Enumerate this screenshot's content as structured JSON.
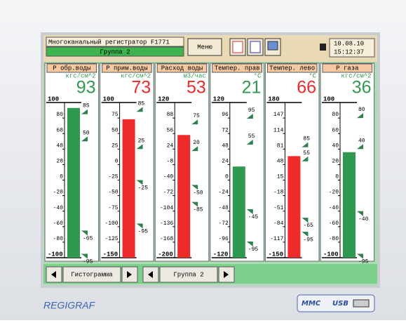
{
  "header": {
    "title": "Многоканальный регистратор F1771",
    "group": "Группа 2",
    "menu": "Меню",
    "date": "10.08.10",
    "time": "15:12:37"
  },
  "channels": [
    {
      "name": "Р обр.воды",
      "unit": "кгс/см^2",
      "value": 93,
      "color": "#2f9a4f",
      "max": 100,
      "min": -100,
      "ticks": [
        80,
        60,
        40,
        20,
        0,
        -20,
        -40,
        -60,
        -80
      ],
      "setpoints": [
        85,
        50,
        -65,
        -95
      ]
    },
    {
      "name": "Р прим.воды",
      "unit": "кгс/см^2",
      "value": 73,
      "color": "#ee2a2a",
      "max": 100,
      "min": -150,
      "ticks": [
        75,
        50,
        25,
        0,
        -25,
        -50,
        -75,
        -100,
        -125
      ],
      "setpoints": [
        85,
        25,
        -25,
        -95
      ]
    },
    {
      "name": "Расход воды",
      "unit": "м3/час",
      "value": 53,
      "color": "#ee2a2a",
      "max": 120,
      "min": -200,
      "ticks": [
        88,
        56,
        24,
        -8,
        -40,
        -72,
        -104,
        -136,
        -168
      ],
      "setpoints": [
        75,
        20,
        -50,
        -85
      ]
    },
    {
      "name": "Темпер. прав",
      "unit": "°C",
      "value": 21,
      "color": "#2f9a4f",
      "max": 120,
      "min": -120,
      "ticks": [
        96,
        72,
        48,
        24,
        0,
        -24,
        -48,
        -72,
        -96
      ],
      "setpoints": [
        95,
        55,
        -45,
        -95
      ]
    },
    {
      "name": "Темпер. лево",
      "unit": "°C",
      "value": 66,
      "color": "#ee2a2a",
      "max": 180,
      "min": -150,
      "ticks": [
        147,
        114,
        81,
        48,
        15,
        -18,
        -51,
        -84,
        -117
      ],
      "setpoints": [
        85,
        55,
        -65,
        -95
      ]
    },
    {
      "name": "Р газа",
      "unit": "кгс/см^2",
      "value": 36,
      "color": "#2f9a4f",
      "max": 100,
      "min": -100,
      "ticks": [
        80,
        60,
        40,
        20,
        0,
        -20,
        -40,
        -60,
        -80
      ],
      "setpoints": [
        80,
        40,
        -40,
        -95
      ]
    }
  ],
  "footer": {
    "mode": "Гистограмма",
    "group": "Группа 2"
  },
  "brand": "REGIGRAF",
  "ports": [
    "MMC",
    "USB"
  ]
}
